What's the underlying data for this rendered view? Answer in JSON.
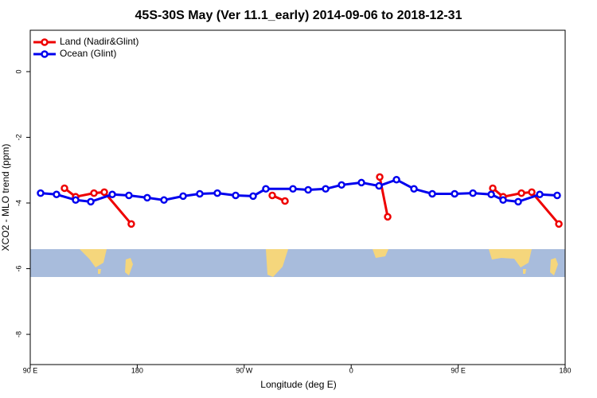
{
  "chart_data": {
    "type": "line",
    "title": "45S-30S May (Ver 11.1_early)   2014-09-06 to 2018-12-31",
    "x_label": "Longitude (deg E)",
    "y_label": "XCO2 - MLO trend (ppm)",
    "xlim": [
      90,
      540
    ],
    "ylim": [
      -8.92,
      1.26
    ],
    "xticks": [
      {
        "value": 90,
        "label": "90 E"
      },
      180,
      {
        "value": 270,
        "label": "90 W"
      },
      {
        "value": 360,
        "label": "0"
      },
      {
        "value": 450,
        "label": "90 E"
      },
      {
        "value": 540,
        "label": "180"
      }
    ],
    "yticks": [
      0,
      -2,
      -4,
      -6,
      -8
    ],
    "legend": "top-left",
    "series": [
      {
        "name": "Land (Nadir&Glint)",
        "color": "#ee0000",
        "x": [
          118.8,
          128.2,
          143.6,
          152.3,
          175.0,
          null,
          293.6,
          304.3,
          null,
          384.0,
          390.7,
          null,
          479.1,
          487.8,
          503.2,
          511.9,
          534.7
        ],
        "values": [
          -3.55,
          -3.81,
          -3.7,
          -3.67,
          -4.64,
          null,
          -3.77,
          -3.94,
          null,
          -3.21,
          -4.42,
          null,
          -3.55,
          -3.81,
          -3.7,
          -3.67,
          -4.64
        ]
      },
      {
        "name": "Ocean (Glint)",
        "color": "#0000ee",
        "x": [
          98.7,
          112.1,
          128.2,
          140.9,
          159.0,
          173.0,
          188.4,
          202.5,
          218.6,
          232.6,
          247.4,
          262.8,
          277.5,
          288.2,
          311.0,
          323.8,
          338.5,
          351.9,
          368.6,
          383.4,
          398.1,
          412.8,
          428.2,
          447.0,
          462.4,
          477.8,
          487.8,
          500.5,
          518.6,
          533.3
        ],
        "values": [
          -3.7,
          -3.74,
          -3.91,
          -3.96,
          -3.74,
          -3.77,
          -3.84,
          -3.91,
          -3.79,
          -3.72,
          -3.7,
          -3.77,
          -3.79,
          -3.57,
          -3.57,
          -3.6,
          -3.57,
          -3.45,
          -3.38,
          -3.48,
          -3.29,
          -3.57,
          -3.72,
          -3.72,
          -3.7,
          -3.74,
          -3.91,
          -3.96,
          -3.74,
          -3.77
        ]
      }
    ]
  }
}
